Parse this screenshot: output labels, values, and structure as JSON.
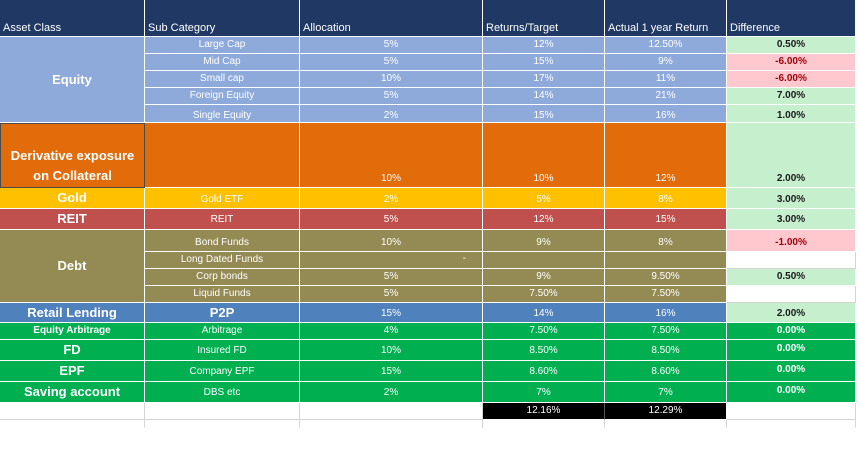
{
  "headers": {
    "asset_class": "Asset Class",
    "sub_category": "Sub Category",
    "allocation": "Allocation",
    "returns_target": "Returns/Target",
    "actual_return": "Actual 1 year Return",
    "difference": "Difference"
  },
  "colors": {
    "header": "#1f3864",
    "equity": "#8eaadb",
    "derivative": "#e26b0a",
    "gold": "#ffc000",
    "reit": "#c0504d",
    "debt": "#948a54",
    "retail": "#4f81bd",
    "green": "#00b050",
    "diff_positive": "#c6efce",
    "diff_negative": "#ffc7ce",
    "total": "#000000"
  },
  "groups": {
    "equity": "Equity",
    "derivative": "Derivative exposure on Collateral",
    "gold": "Gold",
    "reit": "REIT",
    "debt": "Debt",
    "retail": "Retail Lending",
    "equity_arbitrage": "Equity Arbitrage",
    "fd": "FD",
    "epf": "EPF",
    "saving": "Saving account"
  },
  "rows": {
    "large_cap": {
      "sub": "Large Cap",
      "alloc": "5%",
      "target": "12%",
      "actual": "12.50%",
      "diff": "0.50%"
    },
    "mid_cap": {
      "sub": "Mid Cap",
      "alloc": "5%",
      "target": "15%",
      "actual": "9%",
      "diff": "-6.00%"
    },
    "small_cap": {
      "sub": "Small cap",
      "alloc": "10%",
      "target": "17%",
      "actual": "11%",
      "diff": "-6.00%"
    },
    "foreign_equity": {
      "sub": "Foreign Equity",
      "alloc": "5%",
      "target": "14%",
      "actual": "21%",
      "diff": "7.00%"
    },
    "single_equity": {
      "sub": "Single Equity",
      "alloc": "2%",
      "target": "15%",
      "actual": "16%",
      "diff": "1.00%"
    },
    "derivative": {
      "alloc": "10%",
      "target": "10%",
      "actual": "12%",
      "diff": "2.00%"
    },
    "gold_etf": {
      "sub": "Gold ETF",
      "alloc": "2%",
      "target": "5%",
      "actual": "8%",
      "diff": "3.00%"
    },
    "reit": {
      "sub": "REIT",
      "alloc": "5%",
      "target": "12%",
      "actual": "15%",
      "diff": "3.00%"
    },
    "bond_funds": {
      "sub": "Bond Funds",
      "alloc": "10%",
      "target": "9%",
      "actual": "8%",
      "diff": "-1.00%"
    },
    "long_dated": {
      "sub": "Long Dated Funds",
      "alloc_dash": "-"
    },
    "corp_bonds": {
      "sub": "Corp bonds",
      "alloc": "5%",
      "target": "9%",
      "actual": "9.50%",
      "diff": "0.50%"
    },
    "liquid_funds": {
      "sub": "Liquid Funds",
      "alloc": "5%",
      "target": "7.50%",
      "actual": "7.50%"
    },
    "p2p": {
      "sub": "P2P",
      "alloc": "15%",
      "target": "14%",
      "actual": "16%",
      "diff": "2.00%"
    },
    "arbitrage": {
      "sub": "Arbitrage",
      "alloc": "4%",
      "target": "7.50%",
      "actual": "7.50%",
      "diff": "0.00%"
    },
    "insured_fd": {
      "sub": "Insured FD",
      "alloc": "10%",
      "target": "8.50%",
      "actual": "8.50%",
      "diff": "0.00%"
    },
    "company_epf": {
      "sub": "Company EPF",
      "alloc": "15%",
      "target": "8.60%",
      "actual": "8.60%",
      "diff": "0.00%"
    },
    "dbs": {
      "sub": "DBS etc",
      "alloc": "2%",
      "target": "7%",
      "actual": "7%",
      "diff": "0.00%"
    }
  },
  "totals": {
    "target": "12.16%",
    "actual": "12.29%"
  }
}
